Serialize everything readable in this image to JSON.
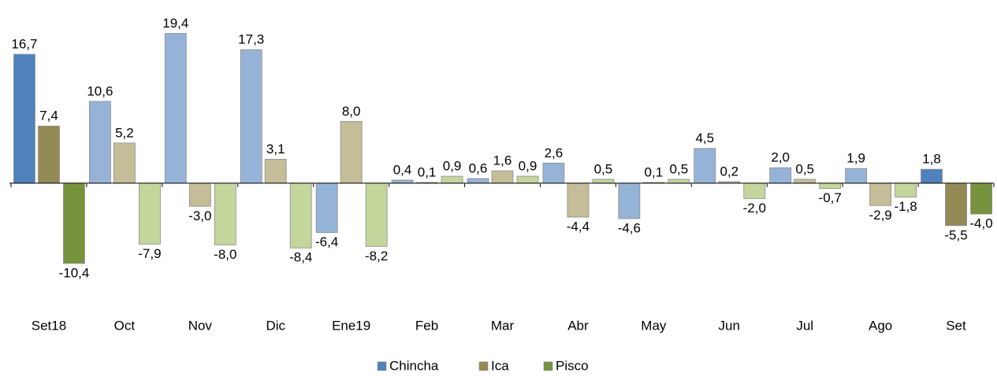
{
  "chart_data": {
    "type": "bar",
    "categories": [
      "Set18",
      "Oct",
      "Nov",
      "Dic",
      "Ene19",
      "Feb",
      "Mar",
      "Abr",
      "May",
      "Jun",
      "Jul",
      "Ago",
      "Set"
    ],
    "series": [
      {
        "name": "Chincha",
        "color": "#4f81bd",
        "point_colors": [
          "#4f81bd",
          "#95b3d7",
          "#95b3d7",
          "#95b3d7",
          "#95b3d7",
          "#95b3d7",
          "#95b3d7",
          "#95b3d7",
          "#95b3d7",
          "#95b3d7",
          "#95b3d7",
          "#95b3d7",
          "#4f81bd"
        ],
        "values": [
          16.7,
          10.6,
          19.4,
          17.3,
          -6.4,
          0.4,
          0.6,
          2.6,
          -4.6,
          4.5,
          2.0,
          1.9,
          1.8
        ],
        "value_labels": [
          "16,7",
          "10,6",
          "19,4",
          "17,3",
          "-6,4",
          "0,4",
          "0,6",
          "2,6",
          "-4,6",
          "4,5",
          "2,0",
          "1,9",
          "1,8"
        ]
      },
      {
        "name": "Ica",
        "color": "#948a54",
        "point_colors": [
          "#948a54",
          "#c4bd97",
          "#c4bd97",
          "#c4bd97",
          "#c4bd97",
          "#c4bd97",
          "#c4bd97",
          "#c4bd97",
          "#c4bd97",
          "#c4bd97",
          "#c4bd97",
          "#c4bd97",
          "#948a54"
        ],
        "values": [
          7.4,
          5.2,
          -3.0,
          3.1,
          8.0,
          0.1,
          1.6,
          -4.4,
          0.1,
          0.2,
          0.5,
          -2.9,
          -5.5
        ],
        "value_labels": [
          "7,4",
          "5,2",
          "-3,0",
          "3,1",
          "8,0",
          "0,1",
          "1,6",
          "-4,4",
          "0,1",
          "0,2",
          "0,5",
          "-2,9",
          "-5,5"
        ]
      },
      {
        "name": "Pisco",
        "color": "#77933c",
        "point_colors": [
          "#77933c",
          "#c3d69b",
          "#c3d69b",
          "#c3d69b",
          "#c3d69b",
          "#c3d69b",
          "#c3d69b",
          "#c3d69b",
          "#c3d69b",
          "#c3d69b",
          "#c3d69b",
          "#c3d69b",
          "#77933c"
        ],
        "values": [
          -10.4,
          -7.9,
          -8.0,
          -8.4,
          -8.2,
          0.9,
          0.9,
          0.5,
          0.5,
          -2.0,
          -0.7,
          -1.8,
          -4.0
        ],
        "value_labels": [
          "-10,4",
          "-7,9",
          "-8,0",
          "-8,4",
          "-8,2",
          "0,9",
          "0,9",
          "0,5",
          "0,5",
          "-2,0",
          "-0,7",
          "-1,8",
          "-4,0"
        ]
      }
    ],
    "ylim": [
      -15,
      22
    ],
    "legend": "bottom"
  }
}
